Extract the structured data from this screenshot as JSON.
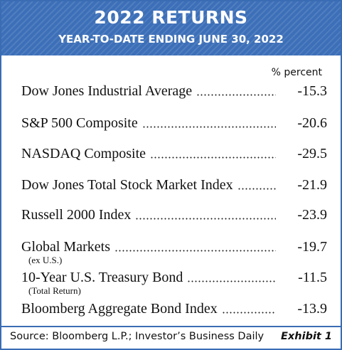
{
  "header": {
    "title": "2022 RETURNS",
    "subtitle": "YEAR-TO-DATE ENDING JUNE 30, 2022"
  },
  "table": {
    "column_header": "% percent",
    "rows": [
      {
        "name": "Dow Jones Industrial Average",
        "value": -15.3
      },
      {
        "name": "S&P 500 Composite",
        "value": -20.6
      },
      {
        "name": "NASDAQ Composite",
        "value": -29.5
      },
      {
        "name": "Dow Jones Total Stock Market Index",
        "value": -21.9
      },
      {
        "name": "Russell 2000 Index",
        "value": -23.9
      },
      {
        "name": "Global Markets",
        "note": "(ex U.S.)",
        "value": -19.7
      },
      {
        "name": "10-Year U.S. Treasury Bond",
        "note": "(Total Return)",
        "value": -11.5
      },
      {
        "name": "Bloomberg Aggregate Bond Index",
        "value": -13.9
      }
    ]
  },
  "footer": {
    "source": "Source: Bloomberg L.P.; Investor’s Business Daily",
    "exhibit": "Exhibit 1"
  }
}
